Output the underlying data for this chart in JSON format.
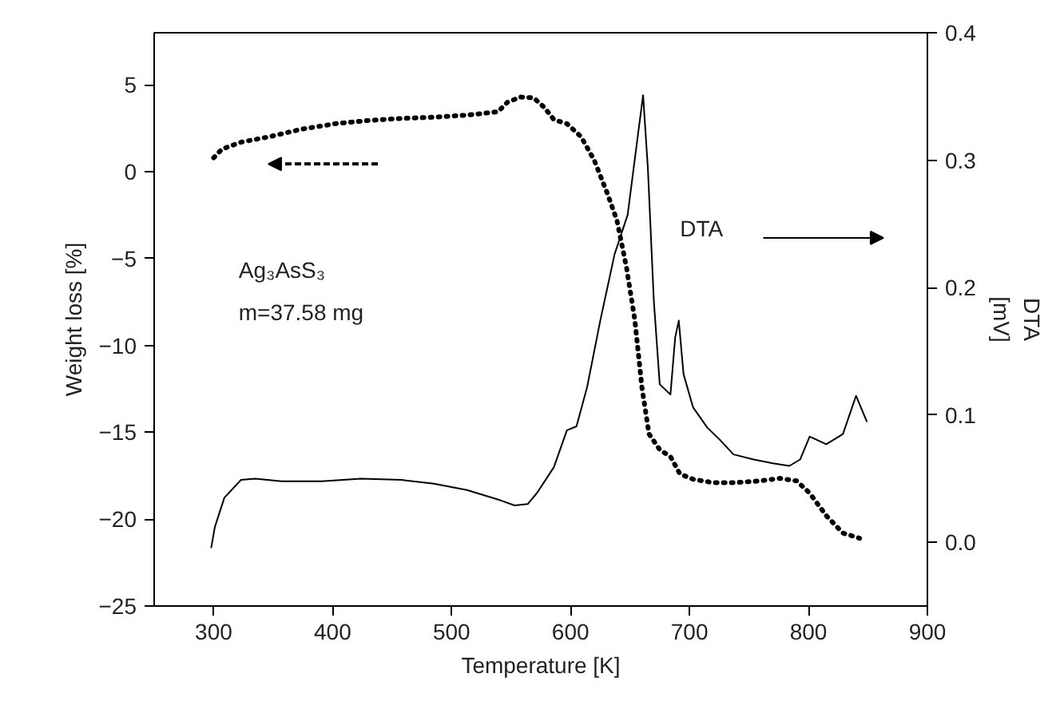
{
  "chart_data": {
    "type": "line",
    "xlabel": "Temperature [K]",
    "ylabel": "Weight loss [%]",
    "y2label": "DTA\n[mV]",
    "xlim": [
      250,
      900
    ],
    "xticks": [
      300,
      400,
      500,
      600,
      700,
      800,
      900
    ],
    "ylim": [
      -25,
      8
    ],
    "yticks": [
      -25,
      -20,
      -15,
      -10,
      -5,
      0,
      5
    ],
    "y2lim": [
      -0.05,
      0.4
    ],
    "y2ticks": [
      {
        "value": 0,
        "label": "0.0"
      },
      0.1,
      0.2,
      0.3,
      0.4
    ],
    "grid": false,
    "annotations": [
      "Ag₃AsS₃",
      "m=37.58 mg",
      "DTA"
    ],
    "series": [
      {
        "color": "#000000",
        "line_style": "dotted",
        "x": [
          300,
          307,
          323,
          346,
          374,
          402,
          430,
          458,
          485,
          513,
          539,
          547,
          558,
          569,
          578,
          586,
          597,
          609,
          620,
          631,
          639,
          647,
          654,
          660,
          666,
          675,
          684,
          692,
          703,
          720,
          737,
          759,
          776,
          790,
          801,
          815,
          829,
          843
        ],
        "values": [
          0.8,
          1.3,
          1.7,
          2.0,
          2.45,
          2.76,
          2.95,
          3.07,
          3.14,
          3.26,
          3.45,
          4.0,
          4.3,
          4.25,
          3.7,
          3.0,
          2.76,
          2.0,
          0.65,
          -1.26,
          -2.8,
          -5.5,
          -8.5,
          -12.4,
          -15.1,
          -16.0,
          -16.4,
          -17.4,
          -17.7,
          -17.9,
          -17.9,
          -17.8,
          -17.65,
          -17.8,
          -18.5,
          -19.8,
          -20.8,
          -21.1
        ]
      },
      {
        "color": "#000000",
        "line_style": "solid",
        "axis": "y2",
        "x": [
          298,
          301,
          309,
          323,
          335,
          357,
          391,
          424,
          458,
          485,
          513,
          541,
          553,
          564,
          572,
          586,
          597,
          605,
          614,
          625,
          637,
          648,
          656,
          661,
          665,
          670,
          675,
          684,
          688,
          691,
          695,
          703,
          715,
          726,
          737,
          754,
          770,
          784,
          793,
          801,
          815,
          829,
          840,
          849
        ],
        "values": [
          -0.004,
          0.012,
          0.035,
          0.049,
          0.05,
          0.048,
          0.048,
          0.05,
          0.049,
          0.046,
          0.041,
          0.033,
          0.029,
          0.03,
          0.039,
          0.059,
          0.088,
          0.091,
          0.122,
          0.174,
          0.226,
          0.257,
          0.315,
          0.351,
          0.294,
          0.19,
          0.124,
          0.116,
          0.161,
          0.174,
          0.132,
          0.106,
          0.09,
          0.08,
          0.069,
          0.065,
          0.062,
          0.06,
          0.065,
          0.083,
          0.077,
          0.085,
          0.115,
          0.095
        ]
      }
    ]
  }
}
